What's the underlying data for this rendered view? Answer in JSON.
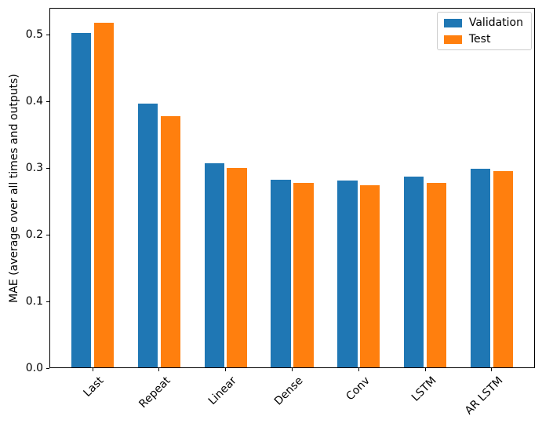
{
  "chart_data": {
    "type": "bar",
    "title": "",
    "xlabel": "",
    "ylabel": "MAE (average over all times and outputs)",
    "categories": [
      "Last",
      "Repeat",
      "Linear",
      "Dense",
      "Conv",
      "LSTM",
      "AR LSTM"
    ],
    "series": [
      {
        "name": "Validation",
        "color": "#1f77b4",
        "values": [
          0.501,
          0.395,
          0.306,
          0.281,
          0.28,
          0.286,
          0.298
        ]
      },
      {
        "name": "Test",
        "color": "#ff7f0e",
        "values": [
          0.516,
          0.377,
          0.299,
          0.276,
          0.273,
          0.277,
          0.294
        ]
      }
    ],
    "ylim": [
      0.0,
      0.54
    ],
    "yticks": [
      "0.0",
      "0.1",
      "0.2",
      "0.3",
      "0.4",
      "0.5"
    ],
    "xtick_rotation": 45,
    "bar_width": 0.3,
    "bar_group_offset": 0.17,
    "grid": false,
    "legend_position": "upper right",
    "legend_entries": [
      "Validation",
      "Test"
    ]
  }
}
